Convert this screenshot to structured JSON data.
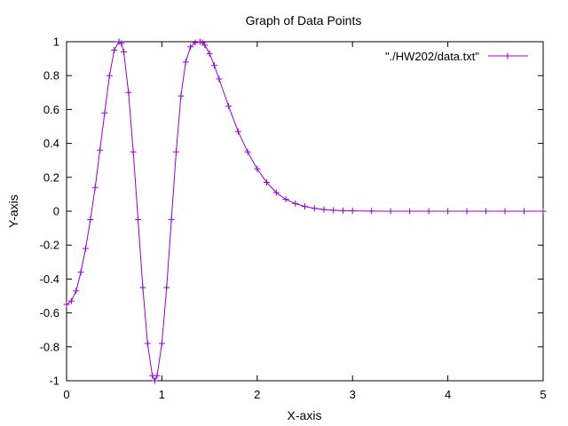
{
  "chart_data": {
    "type": "line",
    "title": "Graph of Data Points",
    "xlabel": "X-axis",
    "ylabel": "Y-axis",
    "xlim": [
      0,
      5
    ],
    "ylim": [
      -1,
      1
    ],
    "xticks": [
      0,
      1,
      2,
      3,
      4,
      5
    ],
    "xtick_labels": [
      "0",
      "1",
      "2",
      "3",
      "4",
      "5"
    ],
    "yticks": [
      -1,
      -0.8,
      -0.6,
      -0.4,
      -0.2,
      0,
      0.2,
      0.4,
      0.6,
      0.8,
      1
    ],
    "ytick_labels": [
      "-1",
      "-0.8",
      "-0.6",
      "-0.4",
      "-0.2",
      "0",
      "0.2",
      "0.4",
      "0.6",
      "0.8",
      "1"
    ],
    "grid": false,
    "legend_position": "top-right",
    "series": [
      {
        "name": "\"./HW202/data.txt\"",
        "color": "#9400d3",
        "marker": "plus",
        "x": [
          0,
          0.05,
          0.1,
          0.15,
          0.2,
          0.25,
          0.3,
          0.35,
          0.4,
          0.45,
          0.5,
          0.55,
          0.575,
          0.6,
          0.65,
          0.7,
          0.75,
          0.8,
          0.85,
          0.9,
          0.925,
          0.95,
          1.0,
          1.05,
          1.1,
          1.15,
          1.2,
          1.25,
          1.3,
          1.35,
          1.4,
          1.425,
          1.45,
          1.5,
          1.55,
          1.6,
          1.7,
          1.8,
          1.9,
          2.0,
          2.1,
          2.2,
          2.3,
          2.4,
          2.5,
          2.6,
          2.7,
          2.8,
          2.9,
          3.0,
          3.2,
          3.4,
          3.6,
          3.8,
          4.0,
          4.2,
          4.4,
          4.6,
          4.8,
          5.0
        ],
        "y": [
          -0.55,
          -0.53,
          -0.47,
          -0.36,
          -0.22,
          -0.05,
          0.14,
          0.36,
          0.58,
          0.8,
          0.95,
          1.0,
          0.99,
          0.94,
          0.7,
          0.35,
          -0.05,
          -0.45,
          -0.78,
          -0.97,
          -1.0,
          -0.97,
          -0.78,
          -0.45,
          -0.05,
          0.35,
          0.68,
          0.88,
          0.97,
          0.995,
          1.0,
          0.995,
          0.98,
          0.93,
          0.86,
          0.78,
          0.62,
          0.47,
          0.35,
          0.25,
          0.17,
          0.11,
          0.07,
          0.045,
          0.028,
          0.017,
          0.01,
          0.006,
          0.003,
          0.002,
          0.0005,
          0.0001,
          0,
          0,
          0,
          0,
          0,
          0,
          0,
          0
        ]
      }
    ]
  }
}
